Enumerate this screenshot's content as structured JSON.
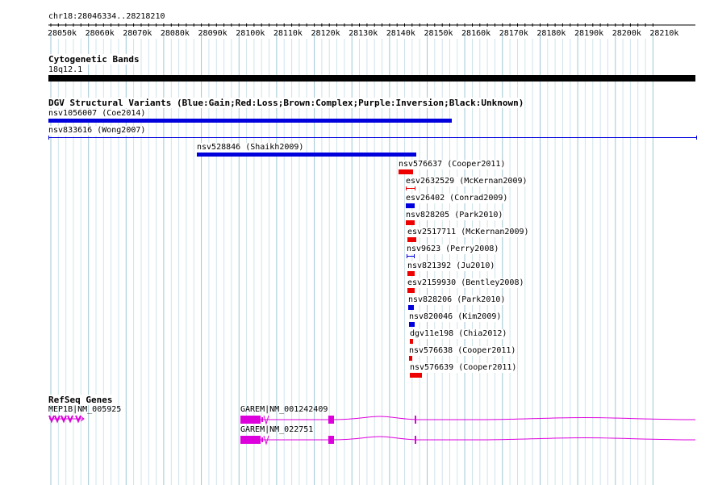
{
  "ruler": {
    "location": "chr18:28046334..28218210",
    "ticks": [
      "28050k",
      "28060k",
      "28070k",
      "28080k",
      "28090k",
      "28100k",
      "28110k",
      "28120k",
      "28130k",
      "28140k",
      "28150k",
      "28160k",
      "28170k",
      "28180k",
      "28190k",
      "28200k",
      "28210k"
    ]
  },
  "cytoband": {
    "title": "Cytogenetic Bands",
    "band": "18q12.1"
  },
  "dgv": {
    "title": "DGV Structural Variants (Blue:Gain;Red:Loss;Brown:Complex;Purple:Inversion;Black:Unknown)",
    "colors": {
      "gain": "#0000dd",
      "loss": "#ee0000"
    },
    "variants": [
      {
        "label": "nsv1056007 (Coe2014)",
        "type": "gain"
      },
      {
        "label": "nsv833616 (Wong2007)",
        "type": "gain"
      },
      {
        "label": "nsv528846 (Shaikh2009)",
        "type": "gain"
      },
      {
        "label": "nsv576637 (Cooper2011)",
        "type": "loss"
      },
      {
        "label": "esv2632529 (McKernan2009)",
        "type": "loss"
      },
      {
        "label": "esv26402 (Conrad2009)",
        "type": "gain"
      },
      {
        "label": "nsv828205 (Park2010)",
        "type": "loss"
      },
      {
        "label": "esv2517711 (McKernan2009)",
        "type": "loss"
      },
      {
        "label": "nsv9623 (Perry2008)",
        "type": "gain"
      },
      {
        "label": "nsv821392 (Ju2010)",
        "type": "loss"
      },
      {
        "label": "esv2159930 (Bentley2008)",
        "type": "loss"
      },
      {
        "label": "nsv828206 (Park2010)",
        "type": "gain"
      },
      {
        "label": "nsv820046 (Kim2009)",
        "type": "gain"
      },
      {
        "label": "dgv11e198 (Chia2012)",
        "type": "loss"
      },
      {
        "label": "nsv576638 (Cooper2011)",
        "type": "loss"
      },
      {
        "label": "nsv576639 (Cooper2011)",
        "type": "loss"
      }
    ]
  },
  "refseq": {
    "title": "RefSeq Genes",
    "color": "#dd00dd",
    "genes": [
      {
        "label": "MEP1B|NM_005925"
      },
      {
        "label": "GAREM|NM_001242409"
      },
      {
        "label": "GAREM|NM_022751"
      }
    ]
  }
}
